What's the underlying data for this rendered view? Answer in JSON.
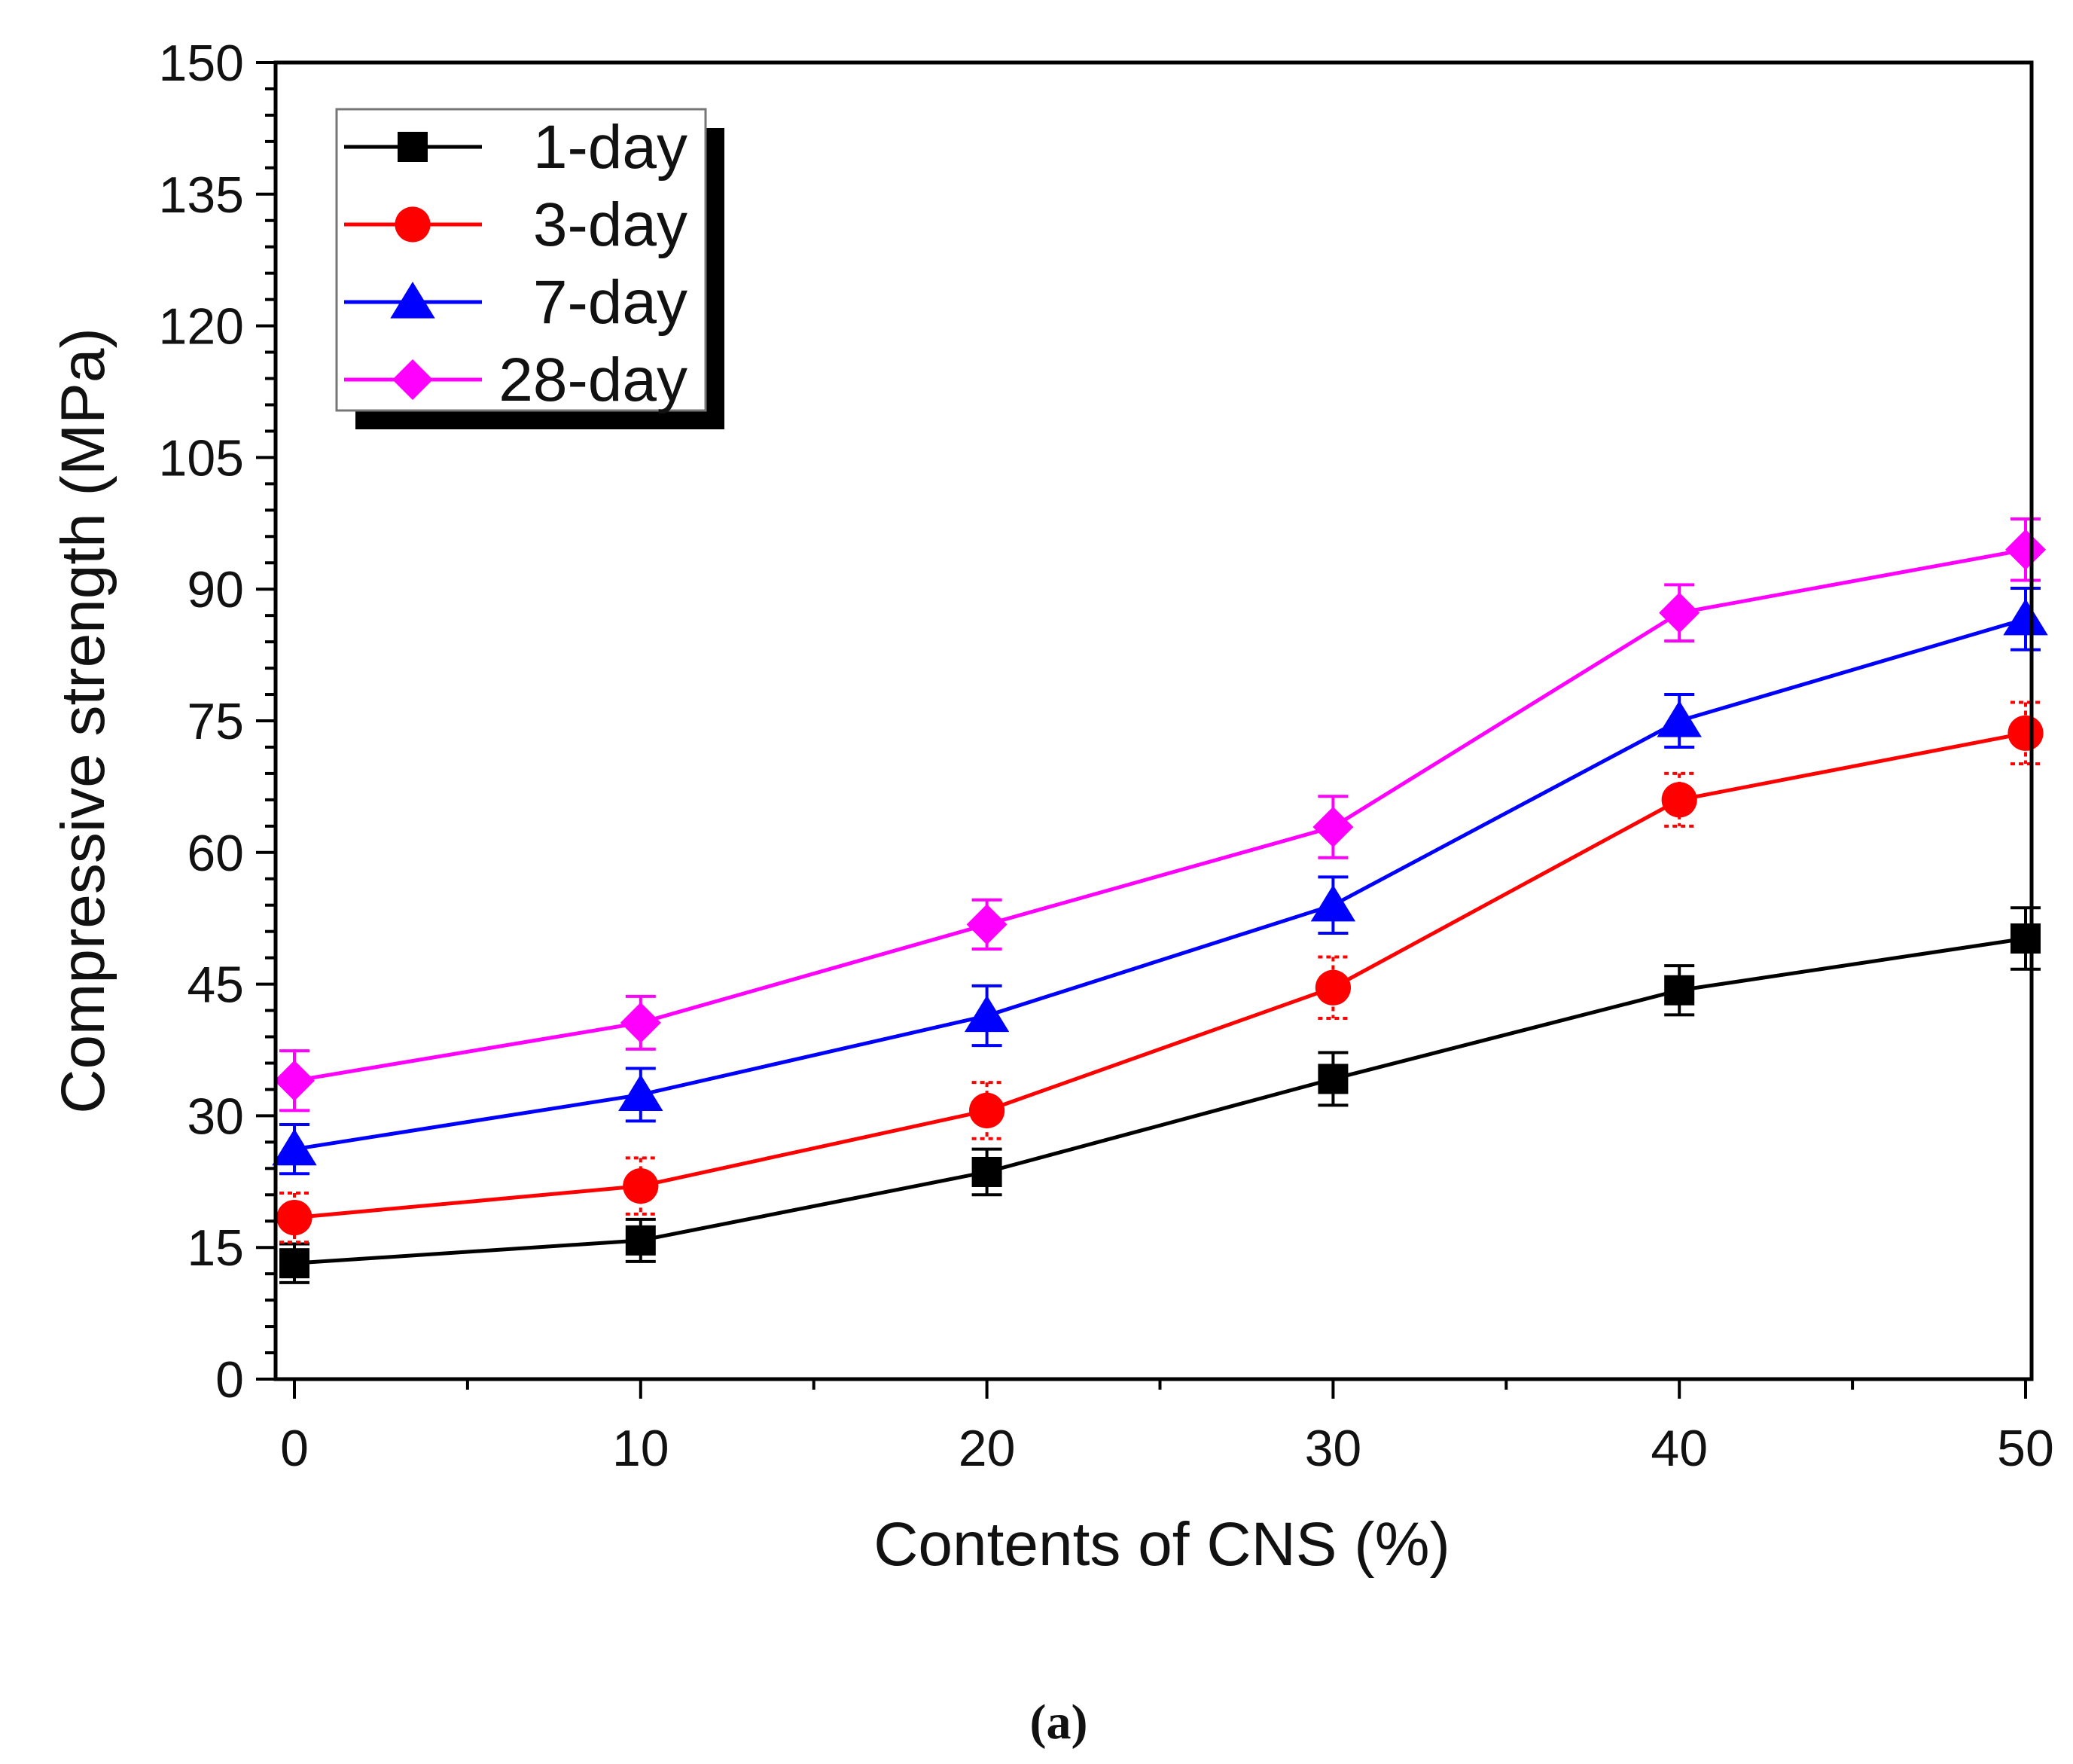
{
  "chart_data": {
    "type": "line",
    "xlabel": "Contents of CNS (%)",
    "ylabel": "Compressive strength (MPa)",
    "caption": "(a)",
    "x": [
      0,
      10,
      20,
      30,
      40,
      50
    ],
    "xticks": [
      "0",
      "10",
      "20",
      "30",
      "40",
      "50"
    ],
    "yticks": [
      "0",
      "15",
      "30",
      "45",
      "60",
      "75",
      "90",
      "105",
      "120",
      "135",
      "150"
    ],
    "xlim": [
      -0.5,
      50.5
    ],
    "ylim": [
      0,
      150
    ],
    "legend_position": "top-left",
    "series": [
      {
        "name": "1-day",
        "color": "#000000",
        "marker": "square",
        "error_style": "solid",
        "values": [
          13.2,
          15.8,
          23.6,
          34.2,
          44.3,
          50.2
        ],
        "errors": [
          2.2,
          2.4,
          2.6,
          3.0,
          2.8,
          3.5
        ]
      },
      {
        "name": "3-day",
        "color": "#ff0000",
        "marker": "circle",
        "error_style": "dotted",
        "values": [
          18.4,
          22.0,
          30.6,
          44.6,
          66.0,
          73.6
        ],
        "errors": [
          2.8,
          3.2,
          3.2,
          3.5,
          3.0,
          3.5
        ]
      },
      {
        "name": "7-day",
        "color": "#0000ff",
        "marker": "triangle",
        "error_style": "solid",
        "values": [
          26.2,
          32.4,
          41.4,
          54.0,
          75.0,
          86.6
        ],
        "errors": [
          2.8,
          3.0,
          3.4,
          3.2,
          3.0,
          3.5
        ]
      },
      {
        "name": "28-day",
        "color": "#ff00ff",
        "marker": "diamond",
        "error_style": "solid",
        "values": [
          34.0,
          40.6,
          51.8,
          62.9,
          87.3,
          94.5
        ],
        "errors": [
          3.4,
          3.0,
          2.8,
          3.5,
          3.2,
          3.5
        ]
      }
    ]
  }
}
